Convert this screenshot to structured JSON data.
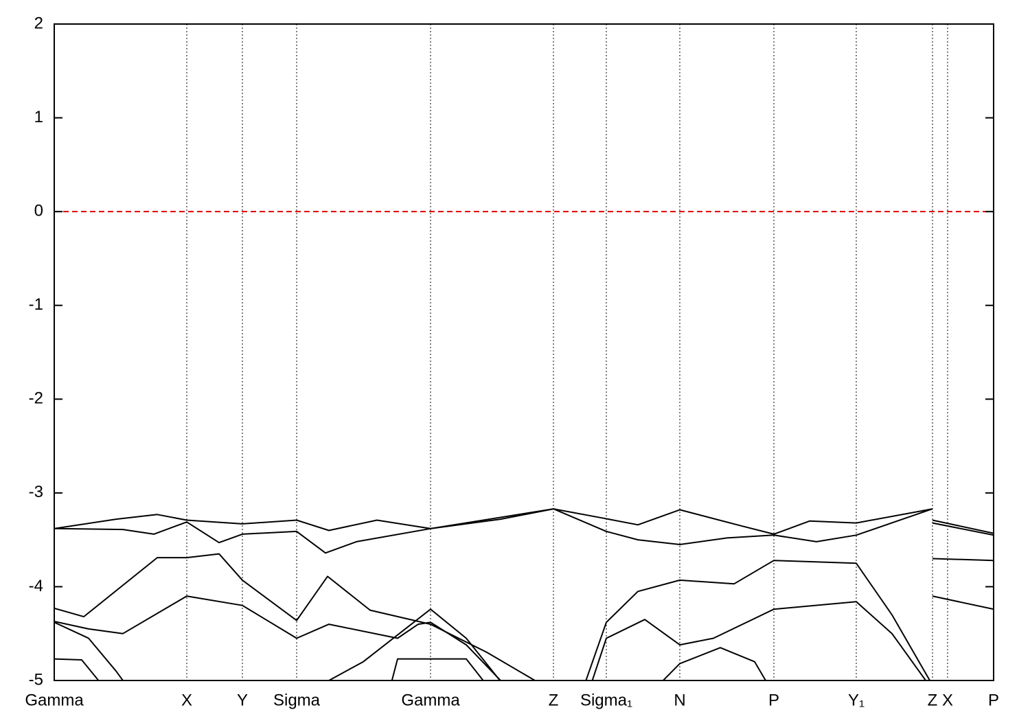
{
  "chart_data": {
    "type": "line",
    "xlim": [
      0,
      13.68
    ],
    "ylim": [
      -5,
      2
    ],
    "yticks": [
      -5,
      -4,
      -3,
      -2,
      -1,
      0,
      1,
      2
    ],
    "xticks": [
      {
        "value": 0,
        "label": "Gamma"
      },
      {
        "value": 1.93,
        "label": "X"
      },
      {
        "value": 2.74,
        "label": "Y"
      },
      {
        "value": 3.53,
        "label": "Sigma"
      },
      {
        "value": 5.48,
        "label": "Gamma"
      },
      {
        "value": 7.27,
        "label": "Z"
      },
      {
        "value": 8.04,
        "label": "Sigma₁"
      },
      {
        "value": 9.11,
        "label": "N"
      },
      {
        "value": 10.48,
        "label": "P"
      },
      {
        "value": 11.68,
        "label": "Y₁"
      },
      {
        "value": 12.79,
        "label": "Z"
      },
      {
        "value": 13.01,
        "label": "X"
      },
      {
        "value": 13.68,
        "label": "P"
      }
    ],
    "xgrid": true,
    "hline": {
      "value": 0,
      "color": "#e00000"
    },
    "series": [
      {
        "color": "#000000",
        "x": [
          0,
          0.9,
          1.5,
          1.93,
          2.74,
          3.53,
          4.0,
          4.7,
          5.48,
          6.5,
          7.27,
          8.0,
          8.5,
          9.11,
          10.0,
          10.48,
          11.0,
          11.68,
          12.79,
          null,
          12.79,
          13.68
        ],
        "values": [
          -3.38,
          -3.28,
          -3.23,
          -3.29,
          -3.33,
          -3.29,
          -3.4,
          -3.29,
          -3.38,
          -3.28,
          -3.17,
          -3.27,
          -3.34,
          -3.18,
          -3.35,
          -3.44,
          -3.3,
          -3.32,
          -3.17,
          null,
          -3.29,
          -3.43
        ]
      },
      {
        "color": "#000000",
        "x": [
          0,
          1.0,
          1.45,
          1.93,
          2.4,
          2.74,
          3.53,
          3.95,
          4.4,
          5.48,
          7.27,
          8.04,
          8.5,
          9.11,
          9.8,
          10.48,
          11.1,
          11.68,
          12.79,
          null,
          12.79,
          13.68
        ],
        "values": [
          -3.38,
          -3.39,
          -3.44,
          -3.31,
          -3.53,
          -3.44,
          -3.41,
          -3.64,
          -3.52,
          -3.38,
          -3.17,
          -3.41,
          -3.5,
          -3.55,
          -3.48,
          -3.45,
          -3.52,
          -3.45,
          -3.17,
          null,
          -3.32,
          -3.45
        ]
      },
      {
        "color": "#000000",
        "x": [
          0,
          0.43,
          1.5,
          1.93,
          2.4,
          2.74,
          3.53,
          3.98,
          4.6,
          5.48,
          6.3,
          7.0,
          7.2,
          null,
          7.6,
          8.04,
          8.5,
          9.11,
          9.9,
          10.48,
          11.68,
          12.2,
          12.79,
          null,
          12.79,
          13.68
        ],
        "values": [
          -4.23,
          -4.32,
          -3.69,
          -3.69,
          -3.65,
          -3.93,
          -4.36,
          -3.89,
          -4.25,
          -4.4,
          -4.7,
          -5.0,
          -5.3,
          null,
          -5.3,
          -4.38,
          -4.05,
          -3.93,
          -3.97,
          -3.72,
          -3.75,
          -4.3,
          -5.05,
          null,
          -3.7,
          -3.72
        ]
      },
      {
        "color": "#000000",
        "x": [
          0,
          0.5,
          1.0,
          1.93,
          2.74,
          3.53,
          4.0,
          5.0,
          5.3,
          5.48,
          6.0,
          6.5,
          6.7,
          null,
          7.7,
          8.04,
          8.6,
          9.11,
          9.6,
          10.48,
          11.68,
          12.2,
          12.79,
          null,
          12.79,
          13.68
        ],
        "values": [
          -4.37,
          -4.45,
          -4.5,
          -4.1,
          -4.2,
          -4.55,
          -4.4,
          -4.55,
          -4.4,
          -4.38,
          -4.62,
          -5.0,
          -5.3,
          null,
          -5.3,
          -4.55,
          -4.35,
          -4.62,
          -4.55,
          -4.24,
          -4.16,
          -4.5,
          -5.1,
          null,
          -4.1,
          -4.24
        ]
      },
      {
        "color": "#000000",
        "x": [
          0,
          0.5,
          0.9,
          1.1,
          null,
          4.0,
          4.5,
          5.48,
          6.0,
          6.6
        ],
        "values": [
          -4.38,
          -4.55,
          -4.9,
          -5.1,
          null,
          -5.0,
          -4.8,
          -4.24,
          -4.55,
          -5.1
        ]
      },
      {
        "color": "#000000",
        "x": [
          0,
          0.4,
          0.7,
          null,
          4.9,
          5.0,
          6.0,
          6.3,
          null,
          8.8,
          9.11,
          9.7,
          10.2,
          10.4
        ],
        "values": [
          -4.77,
          -4.78,
          -5.05,
          null,
          -5.05,
          -4.77,
          -4.77,
          -5.05,
          null,
          -5.05,
          -4.82,
          -4.65,
          -4.8,
          -5.05
        ]
      }
    ]
  }
}
